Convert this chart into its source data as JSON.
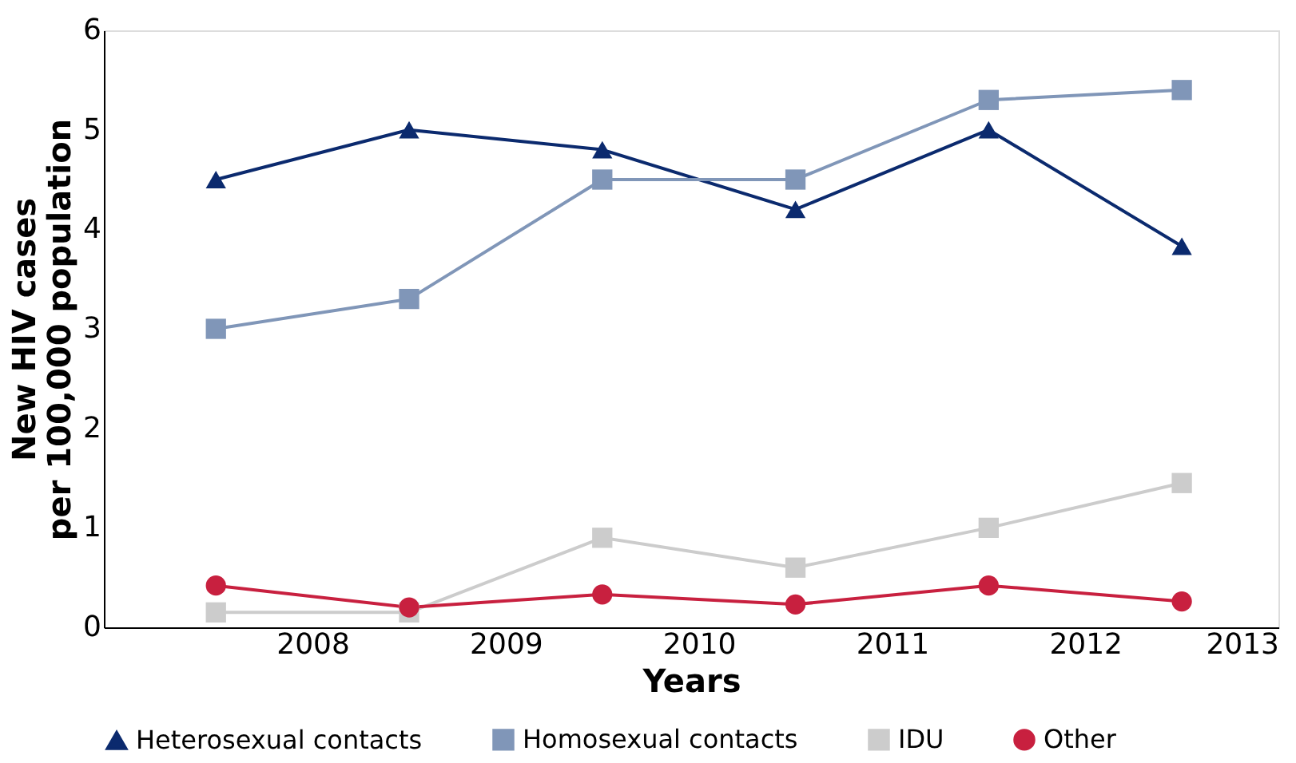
{
  "chart_data": {
    "type": "line",
    "xlabel": "Years",
    "ylabel": "New HIV cases per 100,000 population",
    "x": [
      2007.5,
      2008.5,
      2009.5,
      2010.5,
      2011.5,
      2012.5
    ],
    "xlim": [
      2006.92,
      2013
    ],
    "xticks": [
      2008,
      2009,
      2010,
      2011,
      2012,
      2013
    ],
    "ylim": [
      0,
      6
    ],
    "yticks": [
      0,
      1,
      2,
      3,
      4,
      5,
      6
    ],
    "grid": false,
    "legend": "bottom",
    "line_style": "solid",
    "series": [
      {
        "name": "Heterosexual contacts",
        "color": "#0b2a6e",
        "marker": "triangle",
        "values": [
          4.5,
          5.0,
          4.8,
          4.2,
          5.0,
          3.83
        ]
      },
      {
        "name": "Homosexual contacts",
        "color": "#8096b8",
        "marker": "square",
        "values": [
          3.0,
          3.3,
          4.5,
          4.5,
          5.3,
          5.4
        ]
      },
      {
        "name": "IDU",
        "color": "#cccccc",
        "marker": "square",
        "values": [
          0.15,
          0.15,
          0.9,
          0.6,
          1.0,
          1.45
        ]
      },
      {
        "name": "Other",
        "color": "#c8203f",
        "marker": "circle",
        "values": [
          0.42,
          0.2,
          0.33,
          0.23,
          0.42,
          0.26
        ]
      }
    ]
  }
}
